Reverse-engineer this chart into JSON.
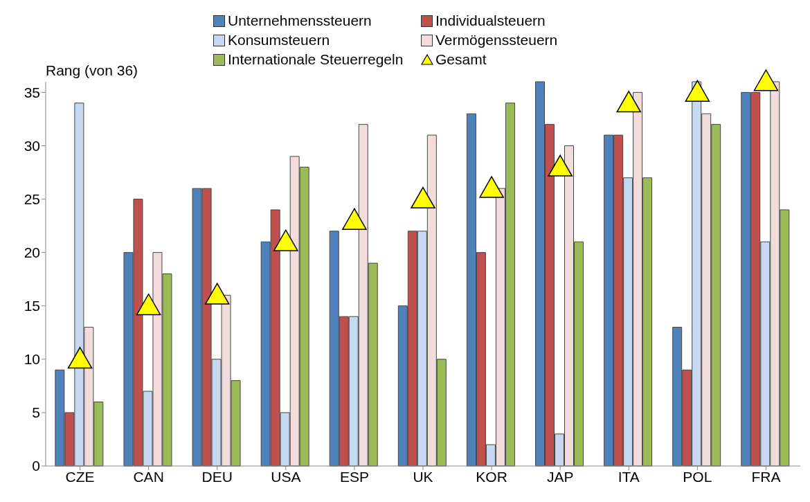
{
  "chart_data": {
    "type": "bar",
    "ylabel": "Rang (von 36)",
    "categories": [
      "CZE",
      "CAN",
      "DEU",
      "USA",
      "ESP",
      "UK",
      "KOR",
      "JAP",
      "ITA",
      "POL",
      "FRA"
    ],
    "series": [
      {
        "name": "Unternehmenssteuern",
        "color": "#4f81bd",
        "values": [
          9,
          20,
          26,
          21,
          22,
          15,
          33,
          36,
          31,
          13,
          35
        ]
      },
      {
        "name": "Individualsteuern",
        "color": "#c0504d",
        "values": [
          5,
          25,
          26,
          24,
          14,
          22,
          20,
          32,
          31,
          9,
          35
        ]
      },
      {
        "name": "Konsumsteuern",
        "color": "#c6d9f1",
        "values": [
          34,
          7,
          10,
          5,
          14,
          22,
          2,
          3,
          27,
          36,
          21
        ]
      },
      {
        "name": "Vermögenssteuern",
        "color": "#f2dcdb",
        "values": [
          13,
          20,
          16,
          29,
          32,
          31,
          26,
          30,
          35,
          33,
          36
        ]
      },
      {
        "name": "Internationale Steuerregeln",
        "color": "#9bbb59",
        "values": [
          6,
          18,
          8,
          28,
          19,
          10,
          34,
          21,
          27,
          32,
          24
        ]
      },
      {
        "name": "Gesamt",
        "type": "scatter",
        "marker": "triangle",
        "color": "#ffff00",
        "values": [
          10,
          15,
          16,
          21,
          23,
          25,
          26,
          28,
          34,
          35,
          36
        ]
      }
    ],
    "ylim": [
      0,
      36
    ],
    "yticks": [
      0,
      5,
      10,
      15,
      20,
      25,
      30,
      35
    ],
    "legend": "top"
  }
}
